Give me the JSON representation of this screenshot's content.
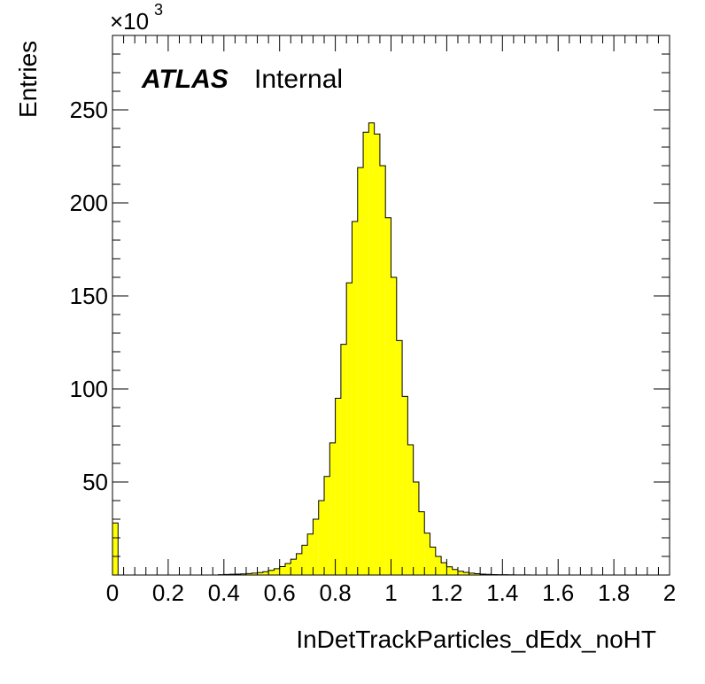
{
  "chart_data": {
    "type": "bar",
    "xlabel": "InDetTrackParticles_dEdx_noHT",
    "ylabel": "Entries",
    "y_multiplier": {
      "base": "×10",
      "exponent": "3"
    },
    "labels": {
      "experiment": "ATLAS",
      "status": "Internal"
    },
    "xlim": [
      0,
      2
    ],
    "ylim": [
      0,
      290
    ],
    "x_ticks": [
      0,
      0.2,
      0.4,
      0.6,
      0.8,
      1,
      1.2,
      1.4,
      1.6,
      1.8,
      2
    ],
    "x_tick_labels": [
      "0",
      "0.2",
      "0.4",
      "0.6",
      "0.8",
      "1",
      "1.2",
      "1.4",
      "1.6",
      "1.8",
      "2"
    ],
    "y_ticks": [
      50,
      100,
      150,
      200,
      250
    ],
    "y_tick_labels": [
      "50",
      "100",
      "150",
      "200",
      "250"
    ],
    "bin_width": 0.02,
    "bin_low_edges": [
      0,
      0.38,
      0.4,
      0.42,
      0.44,
      0.46,
      0.48,
      0.5,
      0.52,
      0.54,
      0.56,
      0.58,
      0.6,
      0.62,
      0.64,
      0.66,
      0.68,
      0.7,
      0.72,
      0.74,
      0.76,
      0.78,
      0.8,
      0.82,
      0.84,
      0.86,
      0.88,
      0.9,
      0.92,
      0.94,
      0.96,
      0.98,
      1.0,
      1.02,
      1.04,
      1.06,
      1.08,
      1.1,
      1.12,
      1.14,
      1.16,
      1.18,
      1.2,
      1.22,
      1.24,
      1.26,
      1.28,
      1.3,
      1.32,
      1.34,
      1.36,
      1.38,
      1.4,
      1.42,
      1.44,
      1.46,
      1.48,
      1.5
    ],
    "values": [
      28,
      0.2,
      0.3,
      0.4,
      0.5,
      0.6,
      0.8,
      1.0,
      1.3,
      1.8,
      2.5,
      3.4,
      4.5,
      6.2,
      8.5,
      11.5,
      16,
      22,
      30,
      40,
      53,
      71,
      95,
      124,
      157,
      190,
      219,
      238,
      243,
      237,
      220,
      192,
      160,
      126,
      96,
      70,
      50,
      34,
      22.5,
      15,
      10,
      6.6,
      4.4,
      3,
      2,
      1.4,
      1,
      0.7,
      0.5,
      0.35,
      0.25,
      0.2,
      0.15,
      0.1,
      0.08,
      0.05,
      0.03,
      0.02
    ],
    "fill_color": "#ffff00",
    "line_color": "#000000",
    "grid": false
  }
}
